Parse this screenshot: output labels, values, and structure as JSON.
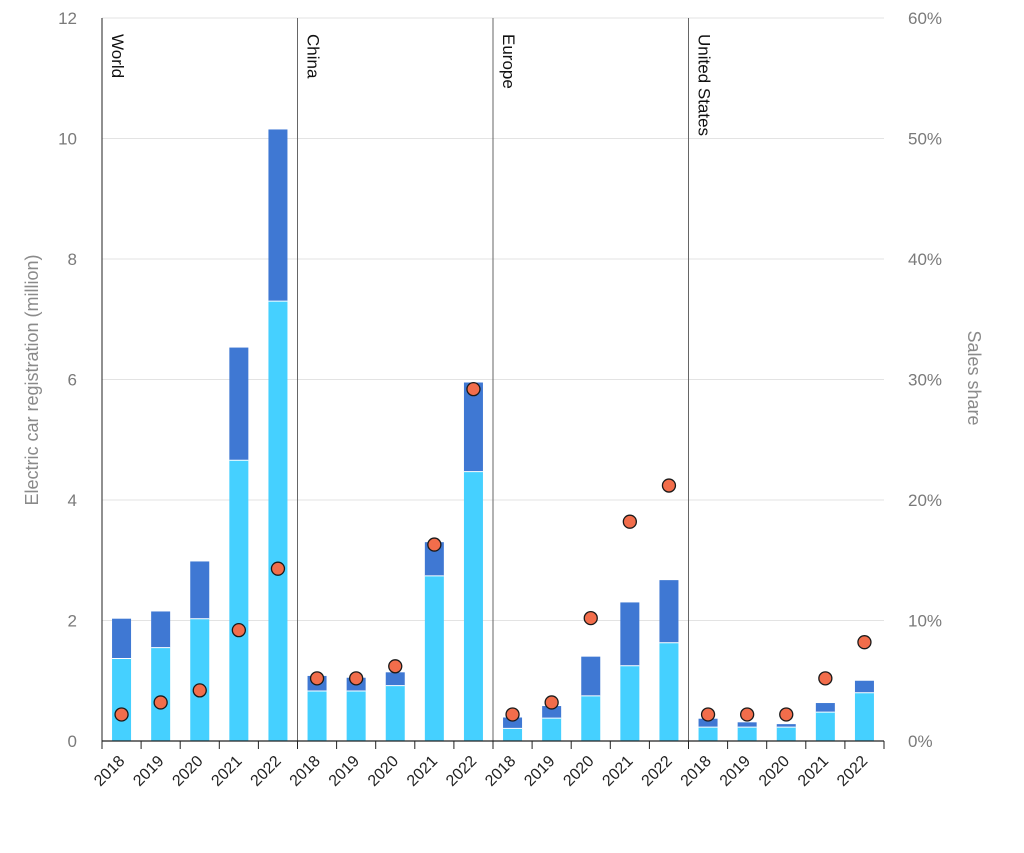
{
  "chart_data": {
    "type": "bar",
    "stacked": true,
    "ylabel": "Electric car registration (million)",
    "y2label": "Sales share",
    "ylim": [
      0,
      12
    ],
    "y2lim": [
      0,
      60
    ],
    "yticks": [
      "0",
      "2",
      "4",
      "6",
      "8",
      "10",
      "12"
    ],
    "y2ticks": [
      "0%",
      "10%",
      "20%",
      "30%",
      "40%",
      "50%",
      "60%"
    ],
    "grid": true,
    "colors": {
      "bev": "#45d0ff",
      "phev": "#3f78d3",
      "share": "#f26d4b"
    },
    "panels": [
      {
        "name": "World",
        "years": [
          "2018",
          "2019",
          "2020",
          "2021",
          "2022"
        ],
        "bev": [
          1.37,
          1.55,
          2.03,
          4.66,
          7.3
        ],
        "phev": [
          0.66,
          0.6,
          0.95,
          1.87,
          2.85
        ],
        "share": [
          2.2,
          3.2,
          4.2,
          9.2,
          14.3
        ]
      },
      {
        "name": "China",
        "years": [
          "2018",
          "2019",
          "2020",
          "2021",
          "2022"
        ],
        "bev": [
          0.83,
          0.83,
          0.92,
          2.74,
          4.47
        ],
        "phev": [
          0.25,
          0.22,
          0.22,
          0.56,
          1.48
        ],
        "share": [
          5.2,
          5.2,
          6.2,
          16.3,
          29.2
        ]
      },
      {
        "name": "Europe",
        "years": [
          "2018",
          "2019",
          "2020",
          "2021",
          "2022"
        ],
        "bev": [
          0.21,
          0.38,
          0.75,
          1.25,
          1.63
        ],
        "phev": [
          0.18,
          0.2,
          0.65,
          1.05,
          1.04
        ],
        "share": [
          2.2,
          3.2,
          10.2,
          18.2,
          21.2
        ]
      },
      {
        "name": "United States",
        "years": [
          "2018",
          "2019",
          "2020",
          "2021",
          "2022"
        ],
        "bev": [
          0.23,
          0.23,
          0.23,
          0.48,
          0.8
        ],
        "phev": [
          0.14,
          0.08,
          0.05,
          0.15,
          0.2
        ],
        "share": [
          2.2,
          2.2,
          2.2,
          5.2,
          8.2
        ]
      }
    ]
  }
}
